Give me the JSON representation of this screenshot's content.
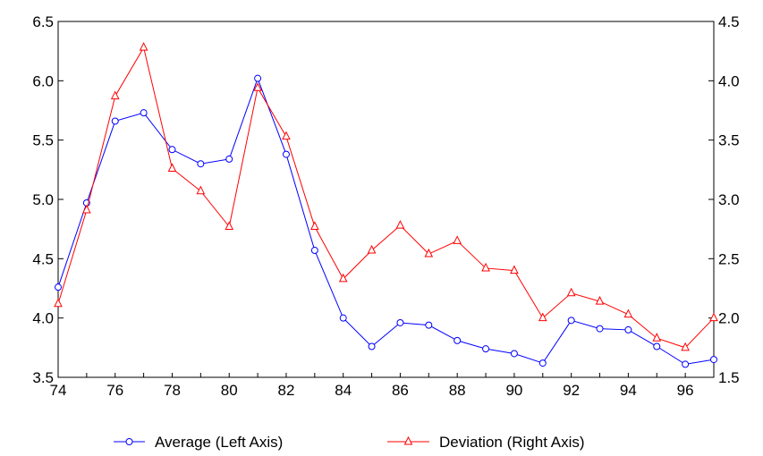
{
  "chart_data": {
    "type": "line",
    "x": [
      74,
      75,
      76,
      77,
      78,
      79,
      80,
      81,
      82,
      83,
      84,
      85,
      86,
      87,
      88,
      89,
      90,
      91,
      92,
      93,
      94,
      95,
      96,
      97
    ],
    "x_ticks": [
      "74",
      "76",
      "78",
      "80",
      "82",
      "84",
      "86",
      "88",
      "90",
      "92",
      "94",
      "96"
    ],
    "y_left_ticks": [
      "3.5",
      "4.0",
      "4.5",
      "5.0",
      "5.5",
      "6.0",
      "6.5"
    ],
    "y_right_ticks": [
      "1.5",
      "2.0",
      "2.5",
      "3.0",
      "3.5",
      "4.0",
      "4.5"
    ],
    "ylim_left": [
      3.5,
      6.5
    ],
    "ylim_right": [
      1.5,
      4.5
    ],
    "xlim": [
      74,
      97
    ],
    "grid": false,
    "legend_position": "bottom",
    "series": [
      {
        "name": "Average (Left Axis)",
        "axis": "left",
        "color": "#0000ff",
        "marker": "circle",
        "values": [
          4.26,
          4.97,
          5.66,
          5.73,
          5.42,
          5.3,
          5.34,
          6.02,
          5.38,
          4.57,
          4.0,
          3.76,
          3.96,
          3.94,
          3.81,
          3.74,
          3.7,
          3.62,
          3.98,
          3.91,
          3.9,
          3.76,
          3.61,
          3.65
        ]
      },
      {
        "name": "Deviation (Right Axis)",
        "axis": "right",
        "color": "#ff0000",
        "marker": "triangle",
        "values": [
          2.12,
          2.91,
          3.87,
          4.28,
          3.26,
          3.07,
          2.77,
          3.94,
          3.53,
          2.77,
          2.33,
          2.57,
          2.78,
          2.54,
          2.65,
          2.42,
          2.4,
          2.0,
          2.21,
          2.14,
          2.03,
          1.83,
          1.75,
          2.0
        ]
      }
    ]
  }
}
